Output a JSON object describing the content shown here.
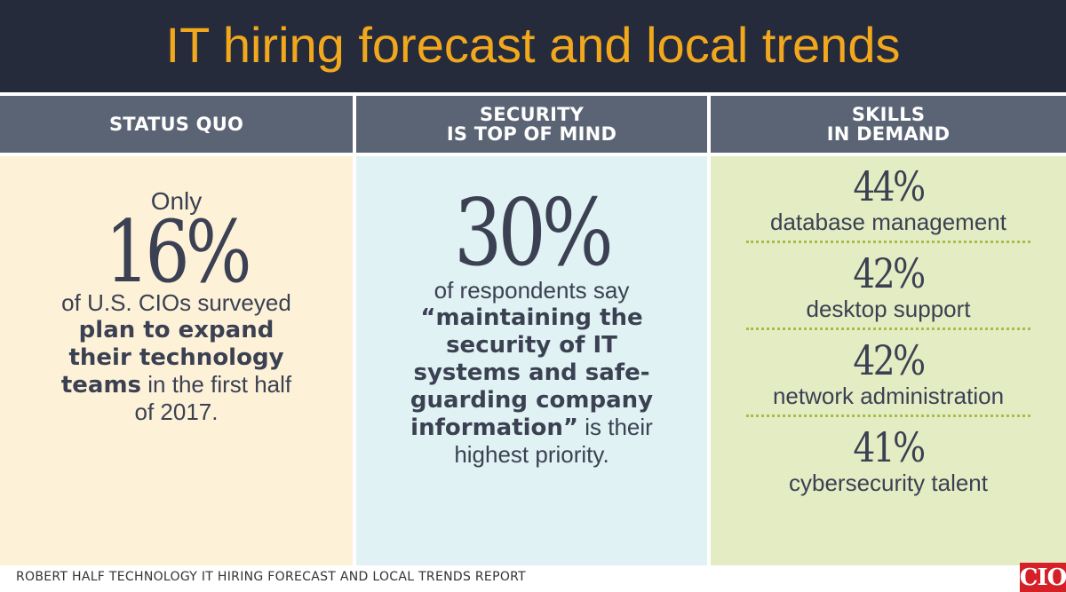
{
  "title": "IT hiring forecast and local trends",
  "columns": [
    {
      "header": "STATUS QUO",
      "lead": "Only",
      "stat": "16%",
      "text_before": "of U.S. CIOs surveyed ",
      "text_bold": "plan to expand their technology teams",
      "text_after": " in the first half of 2017."
    },
    {
      "header": "SECURITY\nIS TOP OF MIND",
      "stat": "30%",
      "text_before": "of respondents say ",
      "text_bold": "“maintaining the security of IT systems and safe-guarding company information”",
      "text_after": " is their highest priority."
    },
    {
      "header": "SKILLS\nIN DEMAND",
      "skills": [
        {
          "pct": "44%",
          "label": "database management"
        },
        {
          "pct": "42%",
          "label": "desktop support"
        },
        {
          "pct": "42%",
          "label": "network administration"
        },
        {
          "pct": "41%",
          "label": "cybersecurity talent"
        }
      ]
    }
  ],
  "footer": "ROBERT HALF TECHNOLOGY IT HIRING FORECAST AND LOCAL TRENDS REPORT",
  "logo": "CIO",
  "colors": {
    "title_bar": "#262b3c",
    "title_text": "#f2a81d",
    "header_bar": "#5b6474",
    "col1_bg": "#fdf1d8",
    "col2_bg": "#e0f2f3",
    "col3_bg": "#e4ecc4",
    "logo_bg": "#d52027"
  }
}
